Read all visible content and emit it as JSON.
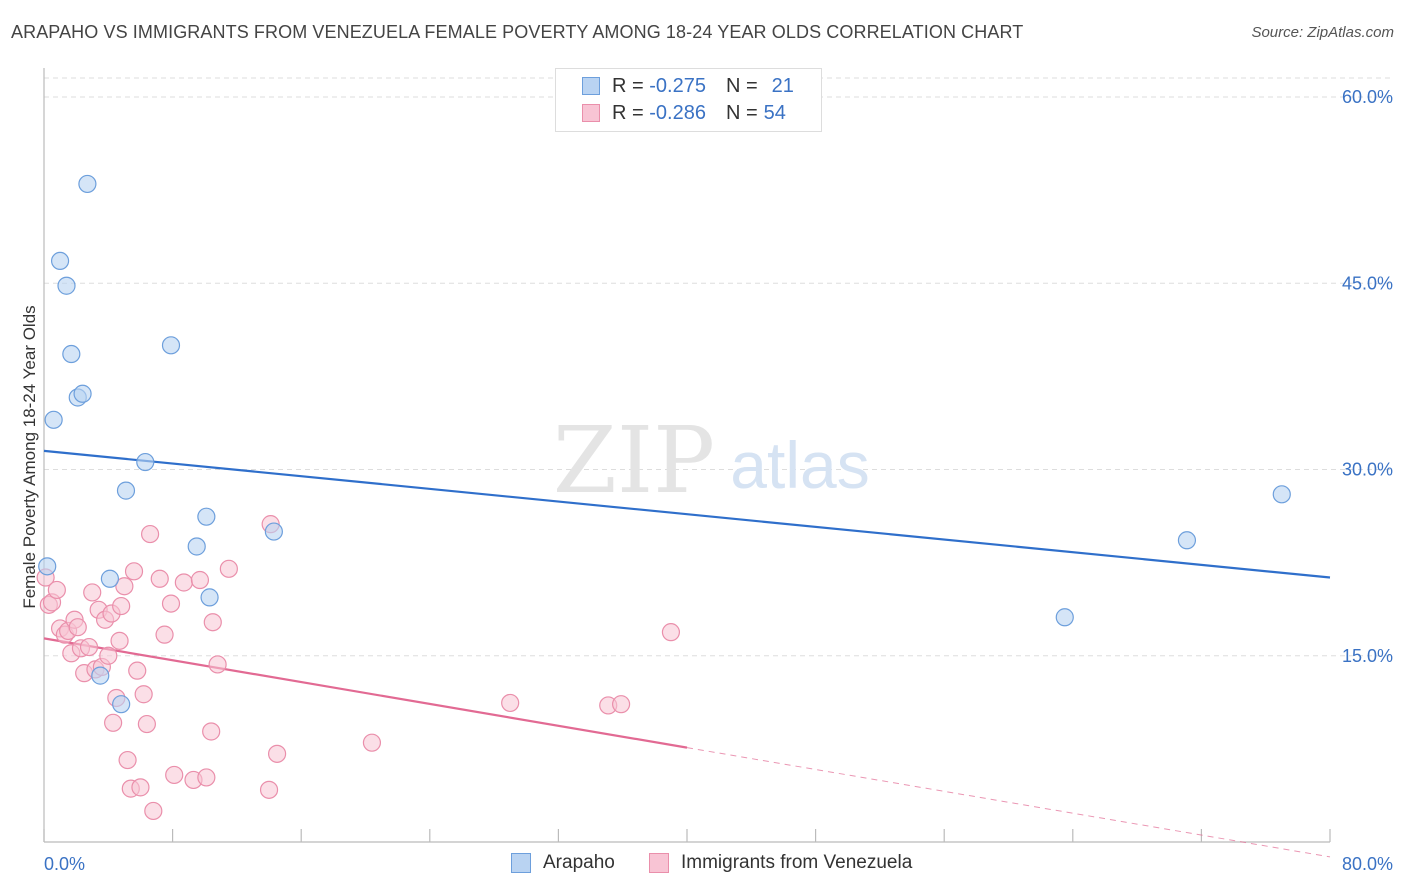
{
  "header": {
    "title": "ARAPAHO VS IMMIGRANTS FROM VENEZUELA FEMALE POVERTY AMONG 18-24 YEAR OLDS CORRELATION CHART",
    "source": "Source: ZipAtlas.com"
  },
  "watermark": {
    "zip": "ZIP",
    "atlas": "atlas"
  },
  "legend": {
    "rows": [
      {
        "r_label": "R =",
        "r_value": "-0.275",
        "n_label": "N =",
        "n_value": "21"
      },
      {
        "r_label": "R =",
        "r_value": "-0.286",
        "n_label": "N =",
        "n_value": "54"
      }
    ]
  },
  "bottom_legend": {
    "items": [
      "Arapaho",
      "Immigrants from Venezuela"
    ]
  },
  "colors": {
    "arapaho_fill": "#b9d3f2",
    "arapaho_stroke": "#6d9fdc",
    "arapaho_line": "#2f6fcb",
    "venezuela_fill": "#f8c4d4",
    "venezuela_stroke": "#ea8fab",
    "venezuela_line": "#e26a93",
    "tick_label": "#3a72c4",
    "grid": "#dddddd"
  },
  "chart_data": {
    "type": "scatter",
    "title": "ARAPAHO VS IMMIGRANTS FROM VENEZUELA FEMALE POVERTY AMONG 18-24 YEAR OLDS CORRELATION CHART",
    "xlabel": "",
    "ylabel": "Female Poverty Among 18-24 Year Olds",
    "xlim": [
      0,
      80
    ],
    "ylim": [
      0,
      62
    ],
    "x_tick_labels": [
      "0.0%",
      "80.0%"
    ],
    "y_ticks": [
      15,
      30,
      45,
      60
    ],
    "y_tick_labels": [
      "15.0%",
      "30.0%",
      "45.0%",
      "60.0%"
    ],
    "grid": true,
    "legend_position": "top-center",
    "series": [
      {
        "name": "Arapaho",
        "r": -0.275,
        "n": 21,
        "trend": {
          "x": [
            0,
            80
          ],
          "y": [
            31.5,
            21.3
          ]
        },
        "points": [
          [
            0.2,
            22.2
          ],
          [
            0.6,
            34.0
          ],
          [
            1.0,
            46.8
          ],
          [
            1.4,
            44.8
          ],
          [
            1.7,
            39.3
          ],
          [
            2.1,
            35.8
          ],
          [
            2.4,
            36.1
          ],
          [
            2.7,
            53.0
          ],
          [
            3.5,
            13.4
          ],
          [
            4.1,
            21.2
          ],
          [
            4.8,
            11.1
          ],
          [
            5.1,
            28.3
          ],
          [
            6.3,
            30.6
          ],
          [
            7.9,
            40.0
          ],
          [
            9.5,
            23.8
          ],
          [
            10.1,
            26.2
          ],
          [
            10.3,
            19.7
          ],
          [
            14.3,
            25.0
          ],
          [
            63.5,
            18.1
          ],
          [
            71.1,
            24.3
          ],
          [
            77.0,
            28.0
          ]
        ]
      },
      {
        "name": "Immigrants from Venezuela",
        "r": -0.286,
        "n": 54,
        "trend": {
          "x": [
            0,
            40
          ],
          "y": [
            16.4,
            7.6
          ]
        },
        "trend_dashed": {
          "x": [
            40,
            80
          ],
          "y": [
            7.6,
            -1.2
          ]
        },
        "points": [
          [
            0.1,
            21.3
          ],
          [
            0.3,
            19.1
          ],
          [
            0.5,
            19.3
          ],
          [
            0.8,
            20.3
          ],
          [
            1.0,
            17.2
          ],
          [
            1.3,
            16.7
          ],
          [
            1.5,
            17.0
          ],
          [
            1.7,
            15.2
          ],
          [
            1.9,
            17.9
          ],
          [
            2.1,
            17.3
          ],
          [
            2.3,
            15.6
          ],
          [
            2.5,
            13.6
          ],
          [
            2.8,
            15.7
          ],
          [
            3.0,
            20.1
          ],
          [
            3.2,
            13.9
          ],
          [
            3.4,
            18.7
          ],
          [
            3.6,
            14.1
          ],
          [
            3.8,
            17.9
          ],
          [
            4.0,
            15.0
          ],
          [
            4.2,
            18.4
          ],
          [
            4.3,
            9.6
          ],
          [
            4.5,
            11.6
          ],
          [
            4.7,
            16.2
          ],
          [
            4.8,
            19.0
          ],
          [
            5.0,
            20.6
          ],
          [
            5.2,
            6.6
          ],
          [
            5.4,
            4.3
          ],
          [
            5.6,
            21.8
          ],
          [
            5.8,
            13.8
          ],
          [
            6.0,
            4.4
          ],
          [
            6.2,
            11.9
          ],
          [
            6.4,
            9.5
          ],
          [
            6.6,
            24.8
          ],
          [
            6.8,
            2.5
          ],
          [
            7.2,
            21.2
          ],
          [
            7.5,
            16.7
          ],
          [
            7.9,
            19.2
          ],
          [
            8.1,
            5.4
          ],
          [
            8.7,
            20.9
          ],
          [
            9.3,
            5.0
          ],
          [
            9.7,
            21.1
          ],
          [
            10.1,
            5.2
          ],
          [
            10.4,
            8.9
          ],
          [
            10.5,
            17.7
          ],
          [
            10.8,
            14.3
          ],
          [
            11.5,
            22.0
          ],
          [
            14.0,
            4.2
          ],
          [
            14.1,
            25.6
          ],
          [
            14.5,
            7.1
          ],
          [
            20.4,
            8.0
          ],
          [
            29.0,
            11.2
          ],
          [
            35.1,
            11.0
          ],
          [
            35.9,
            11.1
          ],
          [
            39.0,
            16.9
          ]
        ]
      }
    ]
  }
}
